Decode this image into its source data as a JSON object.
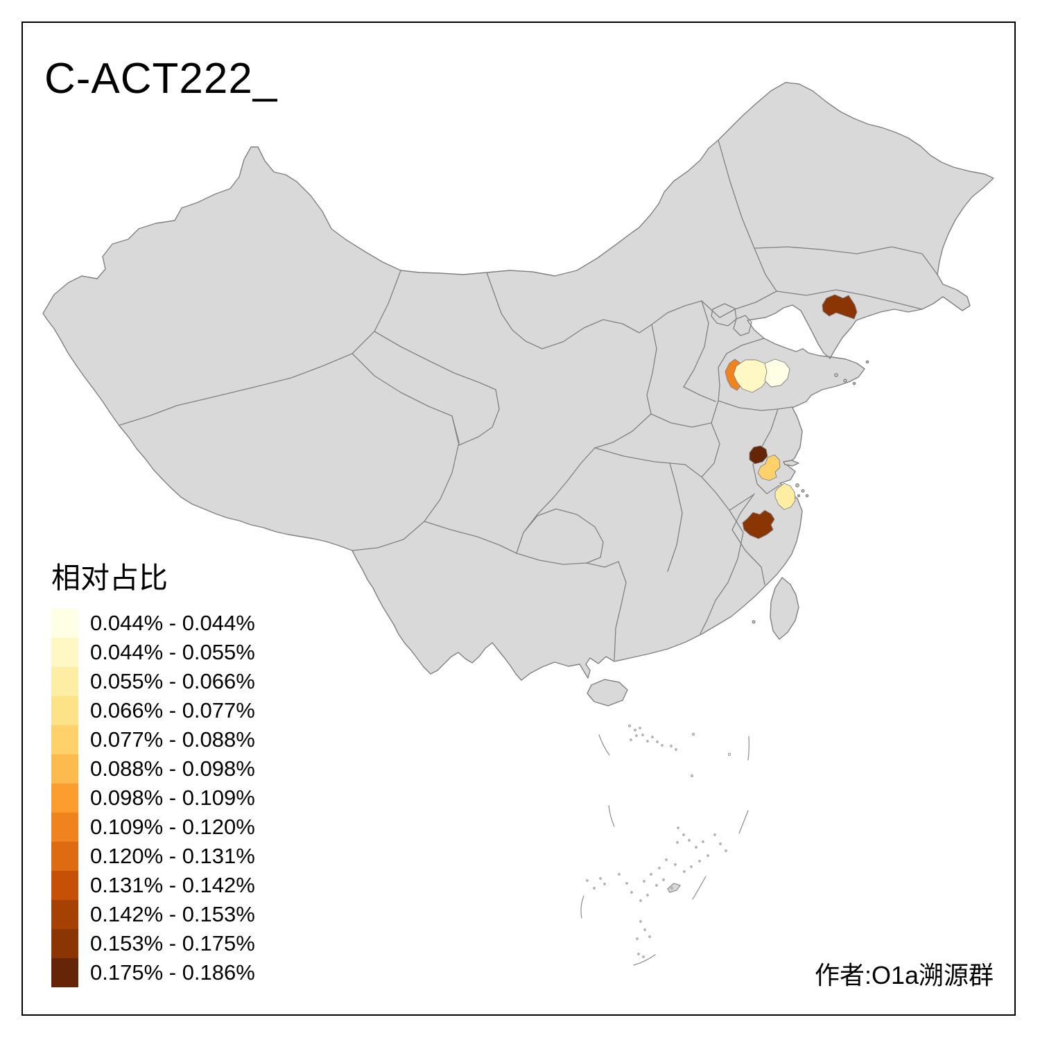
{
  "title": "C-ACT222_",
  "legend": {
    "title": "相对占比",
    "items": [
      {
        "label": "0.044% - 0.044%",
        "color": "#FFFFE5"
      },
      {
        "label": "0.044% - 0.055%",
        "color": "#FFF8C5"
      },
      {
        "label": "0.055% - 0.066%",
        "color": "#FEEEA3"
      },
      {
        "label": "0.066% - 0.077%",
        "color": "#FEE287"
      },
      {
        "label": "0.077% - 0.088%",
        "color": "#FED16B"
      },
      {
        "label": "0.088% - 0.098%",
        "color": "#FDBA4F"
      },
      {
        "label": "0.098% - 0.109%",
        "color": "#FD9D2F"
      },
      {
        "label": "0.109% - 0.120%",
        "color": "#F1831F"
      },
      {
        "label": "0.120% - 0.131%",
        "color": "#DE6A12"
      },
      {
        "label": "0.131% - 0.142%",
        "color": "#C65106"
      },
      {
        "label": "0.142% - 0.153%",
        "color": "#A64104"
      },
      {
        "label": "0.153% - 0.175%",
        "color": "#8B3404"
      },
      {
        "label": "0.175% - 0.186%",
        "color": "#662506"
      }
    ]
  },
  "attribution": "作者:O1a溯源群",
  "map": {
    "land_fill": "#D9D9D9",
    "border_color": "#808080",
    "sea_detail_color": "#8C8C8C",
    "frame_color": "#000000",
    "regions": [
      {
        "name": "liaoning-dandong",
        "value_bin": "0.153% - 0.175%",
        "color": "#8B3404"
      },
      {
        "name": "shandong-jinan",
        "value_bin": "0.109% - 0.120%",
        "color": "#F1831F"
      },
      {
        "name": "shandong-central",
        "value_bin": "0.044% - 0.055%",
        "color": "#FFF8C5"
      },
      {
        "name": "shandong-east",
        "value_bin": "0.044% - 0.044%",
        "color": "#FFFFE5"
      },
      {
        "name": "jiangsu-dark",
        "value_bin": "0.175% - 0.186%",
        "color": "#662506"
      },
      {
        "name": "jiangsu-light",
        "value_bin": "0.077% - 0.088%",
        "color": "#FED16B"
      },
      {
        "name": "zhejiang-coastal",
        "value_bin": "0.055% - 0.066%",
        "color": "#FEEEA3"
      },
      {
        "name": "zhejiang-jinhua",
        "value_bin": "0.153% - 0.175%",
        "color": "#8B3404"
      }
    ]
  }
}
